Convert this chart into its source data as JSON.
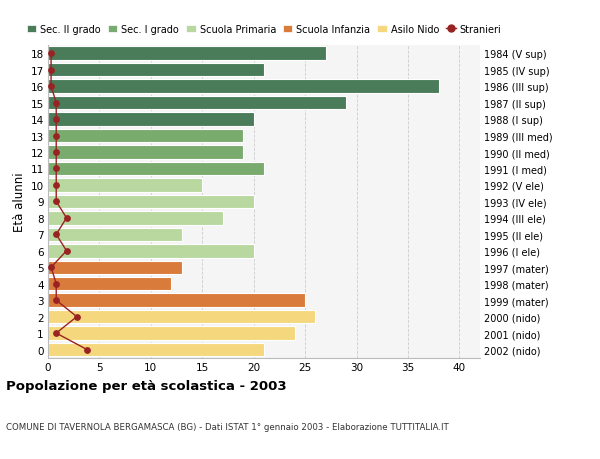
{
  "ages": [
    18,
    17,
    16,
    15,
    14,
    13,
    12,
    11,
    10,
    9,
    8,
    7,
    6,
    5,
    4,
    3,
    2,
    1,
    0
  ],
  "right_labels": [
    "1984 (V sup)",
    "1985 (IV sup)",
    "1986 (III sup)",
    "1987 (II sup)",
    "1988 (I sup)",
    "1989 (III med)",
    "1990 (II med)",
    "1991 (I med)",
    "1992 (V ele)",
    "1993 (IV ele)",
    "1994 (III ele)",
    "1995 (II ele)",
    "1996 (I ele)",
    "1997 (mater)",
    "1998 (mater)",
    "1999 (mater)",
    "2000 (nido)",
    "2001 (nido)",
    "2002 (nido)"
  ],
  "bar_values": [
    27,
    21,
    38,
    29,
    20,
    19,
    19,
    21,
    15,
    20,
    17,
    13,
    20,
    13,
    12,
    25,
    26,
    24,
    21
  ],
  "stranieri_values": [
    0.3,
    0.3,
    0.3,
    0.8,
    0.8,
    0.8,
    0.8,
    0.8,
    0.8,
    0.8,
    1.8,
    0.8,
    1.8,
    0.3,
    0.8,
    0.8,
    2.8,
    0.8,
    3.8
  ],
  "bar_colors": [
    "#4a7c59",
    "#4a7c59",
    "#4a7c59",
    "#4a7c59",
    "#4a7c59",
    "#7aab6e",
    "#7aab6e",
    "#7aab6e",
    "#b8d8a0",
    "#b8d8a0",
    "#b8d8a0",
    "#b8d8a0",
    "#b8d8a0",
    "#d97b3a",
    "#d97b3a",
    "#d97b3a",
    "#f5d87e",
    "#f5d87e",
    "#f5d87e"
  ],
  "legend_labels": [
    "Sec. II grado",
    "Sec. I grado",
    "Scuola Primaria",
    "Scuola Infanzia",
    "Asilo Nido",
    "Stranieri"
  ],
  "legend_colors": [
    "#4a7c59",
    "#7aab6e",
    "#b8d8a0",
    "#d97b3a",
    "#f5d87e",
    "#a02020"
  ],
  "stranieri_color": "#992222",
  "ylabel_left": "Età alunni",
  "title": "Popolazione per età scolastica - 2003",
  "subtitle": "COMUNE DI TAVERNOLA BERGAMASCA (BG) - Dati ISTAT 1° gennaio 2003 - Elaborazione TUTTITALIA.IT",
  "xlim": [
    0,
    42
  ],
  "xticks": [
    0,
    5,
    10,
    15,
    20,
    25,
    30,
    35,
    40
  ],
  "background_color": "#f5f5f5",
  "grid_color": "#cccccc"
}
